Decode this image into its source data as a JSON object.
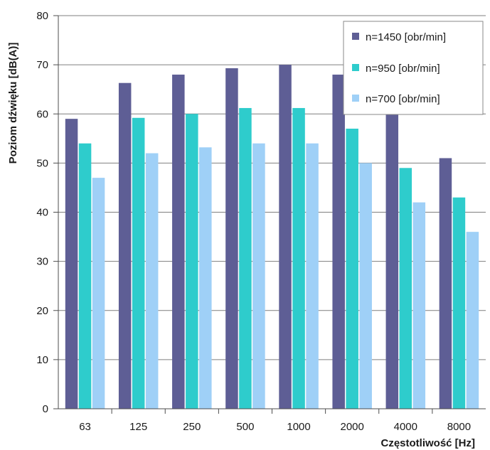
{
  "chart_data": {
    "type": "bar",
    "title": "",
    "xlabel": "Częstotliwość [Hz]",
    "ylabel": "Poziom dźwięku [dB(A)]",
    "ylim": [
      0,
      80
    ],
    "yticks": [
      "0",
      "10",
      "20",
      "30",
      "40",
      "50",
      "60",
      "70",
      "80"
    ],
    "grid": true,
    "legend_position": "top-right",
    "categories": [
      "63",
      "125",
      "250",
      "500",
      "1000",
      "2000",
      "4000",
      "8000"
    ],
    "series": [
      {
        "name": "n=1450 [obr/min]",
        "color": "#5e5e95",
        "values": [
          59,
          66.3,
          68,
          69.3,
          70,
          68,
          61,
          51
        ]
      },
      {
        "name": "n=950 [obr/min]",
        "color": "#2ecccc",
        "values": [
          54,
          59.2,
          60,
          61.2,
          61.2,
          57,
          49,
          43
        ]
      },
      {
        "name": "n=700 [obr/min]",
        "color": "#9fd0f7",
        "values": [
          47,
          52,
          53.2,
          54,
          54,
          50,
          42,
          36
        ]
      }
    ]
  }
}
